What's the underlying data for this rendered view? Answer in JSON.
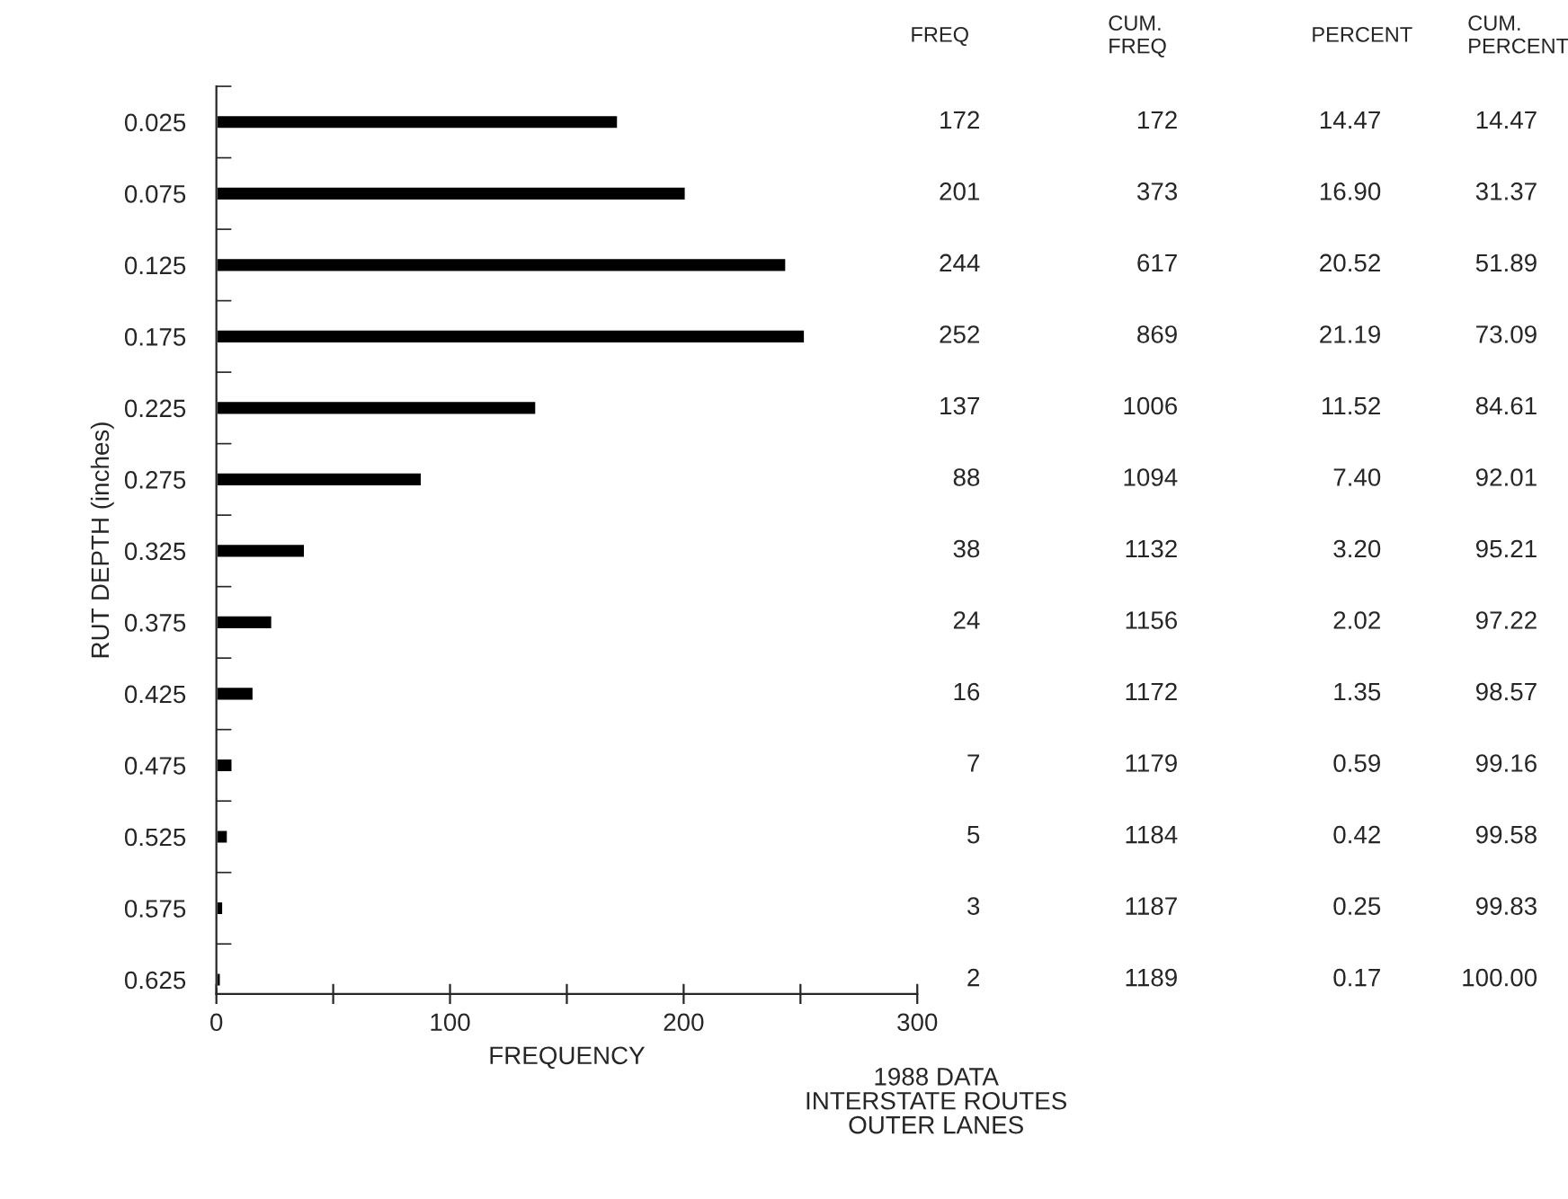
{
  "chart_data": {
    "type": "bar",
    "orientation": "horizontal",
    "categories": [
      "0.025",
      "0.075",
      "0.125",
      "0.175",
      "0.225",
      "0.275",
      "0.325",
      "0.375",
      "0.425",
      "0.475",
      "0.525",
      "0.575",
      "0.625"
    ],
    "values": [
      172,
      201,
      244,
      252,
      137,
      88,
      38,
      24,
      16,
      7,
      5,
      3,
      2
    ],
    "color": "#000000",
    "xlabel": "FREQUENCY",
    "ylabel": "RUT DEPTH (inches)",
    "xlim": [
      0,
      300
    ],
    "xticks": [
      0,
      {
        "value": 50,
        "label": null
      },
      100,
      {
        "value": 150,
        "label": null
      },
      200,
      {
        "value": 250,
        "label": null
      },
      300
    ],
    "data_labels": true,
    "grid": false,
    "legend": false,
    "annotations": [
      "FREQ",
      "CUM.\nFREQ",
      "PERCENT",
      "CUM.\nPERCENT",
      "172",
      "14.47",
      "14.47",
      "373",
      "16.90",
      "31.37",
      "617",
      "20.52",
      "51.89",
      "869",
      "21.19",
      "73.09",
      "1006",
      "11.52",
      "84.61",
      "1094",
      "7.40",
      "92.01",
      "1132",
      "3.20",
      "95.21",
      "1156",
      "2.02",
      "97.22",
      "1172",
      "1.35",
      "98.57",
      "1179",
      "0.59",
      "99.16",
      "1184",
      "0.42",
      "99.58",
      "1187",
      "0.25",
      "99.83",
      "1189",
      "0.17",
      "100.00",
      "1988 DATA\nINTERSTATE ROUTES\nOUTER LANES"
    ]
  }
}
